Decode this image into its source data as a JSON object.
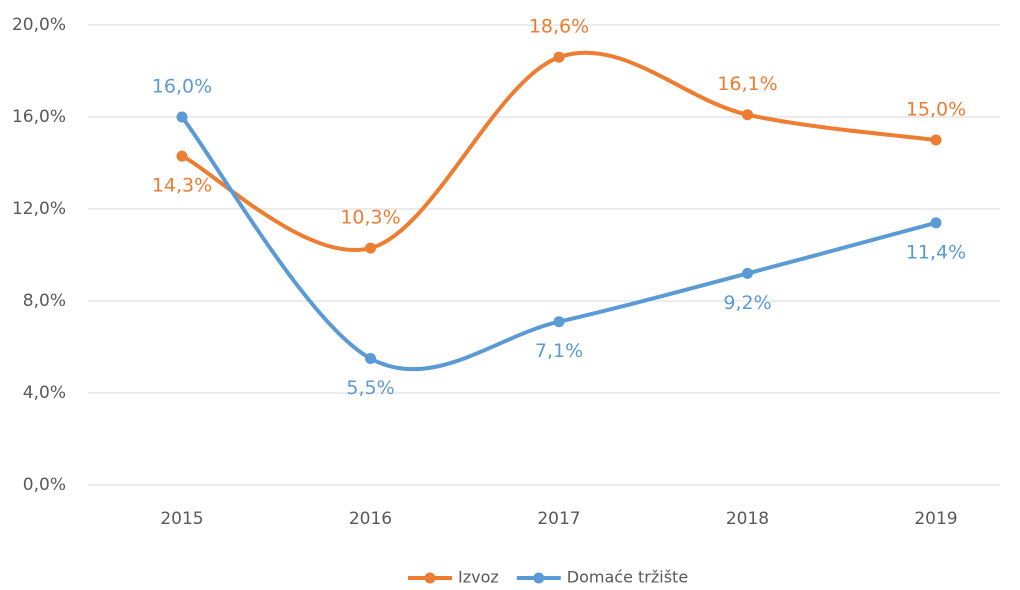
{
  "chart_data": {
    "type": "line",
    "categories": [
      "2015",
      "2016",
      "2017",
      "2018",
      "2019"
    ],
    "series": [
      {
        "name": "Izvoz",
        "color": "#ed7d31",
        "values": [
          14.3,
          10.3,
          18.6,
          16.1,
          15.0
        ],
        "value_labels": [
          "14,3%",
          "10,3%",
          "18,6%",
          "16,1%",
          "15,0%"
        ]
      },
      {
        "name": "Domaće tržište",
        "color": "#5b9bd5",
        "values": [
          16.0,
          5.5,
          7.1,
          9.2,
          11.4
        ],
        "value_labels": [
          "16,0%",
          "5,5%",
          "7,1%",
          "9,2%",
          "11,4%"
        ]
      }
    ],
    "ylim": [
      0,
      20
    ],
    "yticks": [
      {
        "value": 0,
        "label": "0,0%"
      },
      {
        "value": 4,
        "label": "4,0%"
      },
      {
        "value": 8,
        "label": "8,0%"
      },
      {
        "value": 12,
        "label": "12,0%"
      },
      {
        "value": 16,
        "label": "16,0%"
      },
      {
        "value": 20,
        "label": "20,0%"
      }
    ],
    "grid": true,
    "smooth": true,
    "legend": "bottom"
  }
}
